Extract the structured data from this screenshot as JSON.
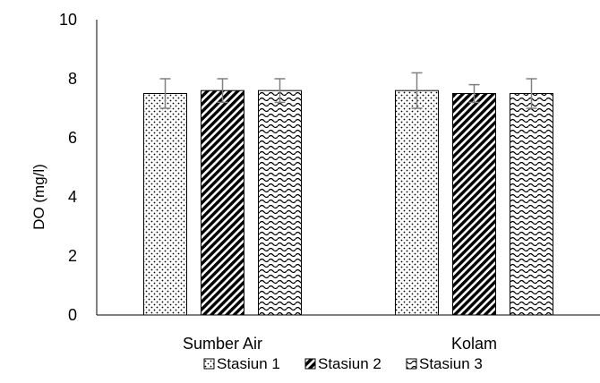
{
  "chart_data": {
    "type": "bar",
    "categories": [
      "Sumber Air",
      "Kolam"
    ],
    "series": [
      {
        "name": "Stasiun 1",
        "values": [
          7.5,
          7.6
        ],
        "errors": [
          0.5,
          0.6
        ],
        "pattern": "dots"
      },
      {
        "name": "Stasiun 2",
        "values": [
          7.6,
          7.5
        ],
        "errors": [
          0.4,
          0.3
        ],
        "pattern": "diagonal-hatch"
      },
      {
        "name": "Stasiun 3",
        "values": [
          7.6,
          7.5
        ],
        "errors": [
          0.4,
          0.5
        ],
        "pattern": "waves"
      }
    ],
    "ylabel": "DO (mg/l)",
    "xlabel": "",
    "title": "",
    "ylim": [
      0,
      10
    ],
    "yticks": [
      0,
      2,
      4,
      6,
      8,
      10
    ],
    "grid": false,
    "legend": "bottom",
    "colors": {
      "bar_fill": "#ffffff",
      "bar_stroke": "#000000",
      "error_bar": "#808080",
      "axis": "#000000"
    }
  }
}
